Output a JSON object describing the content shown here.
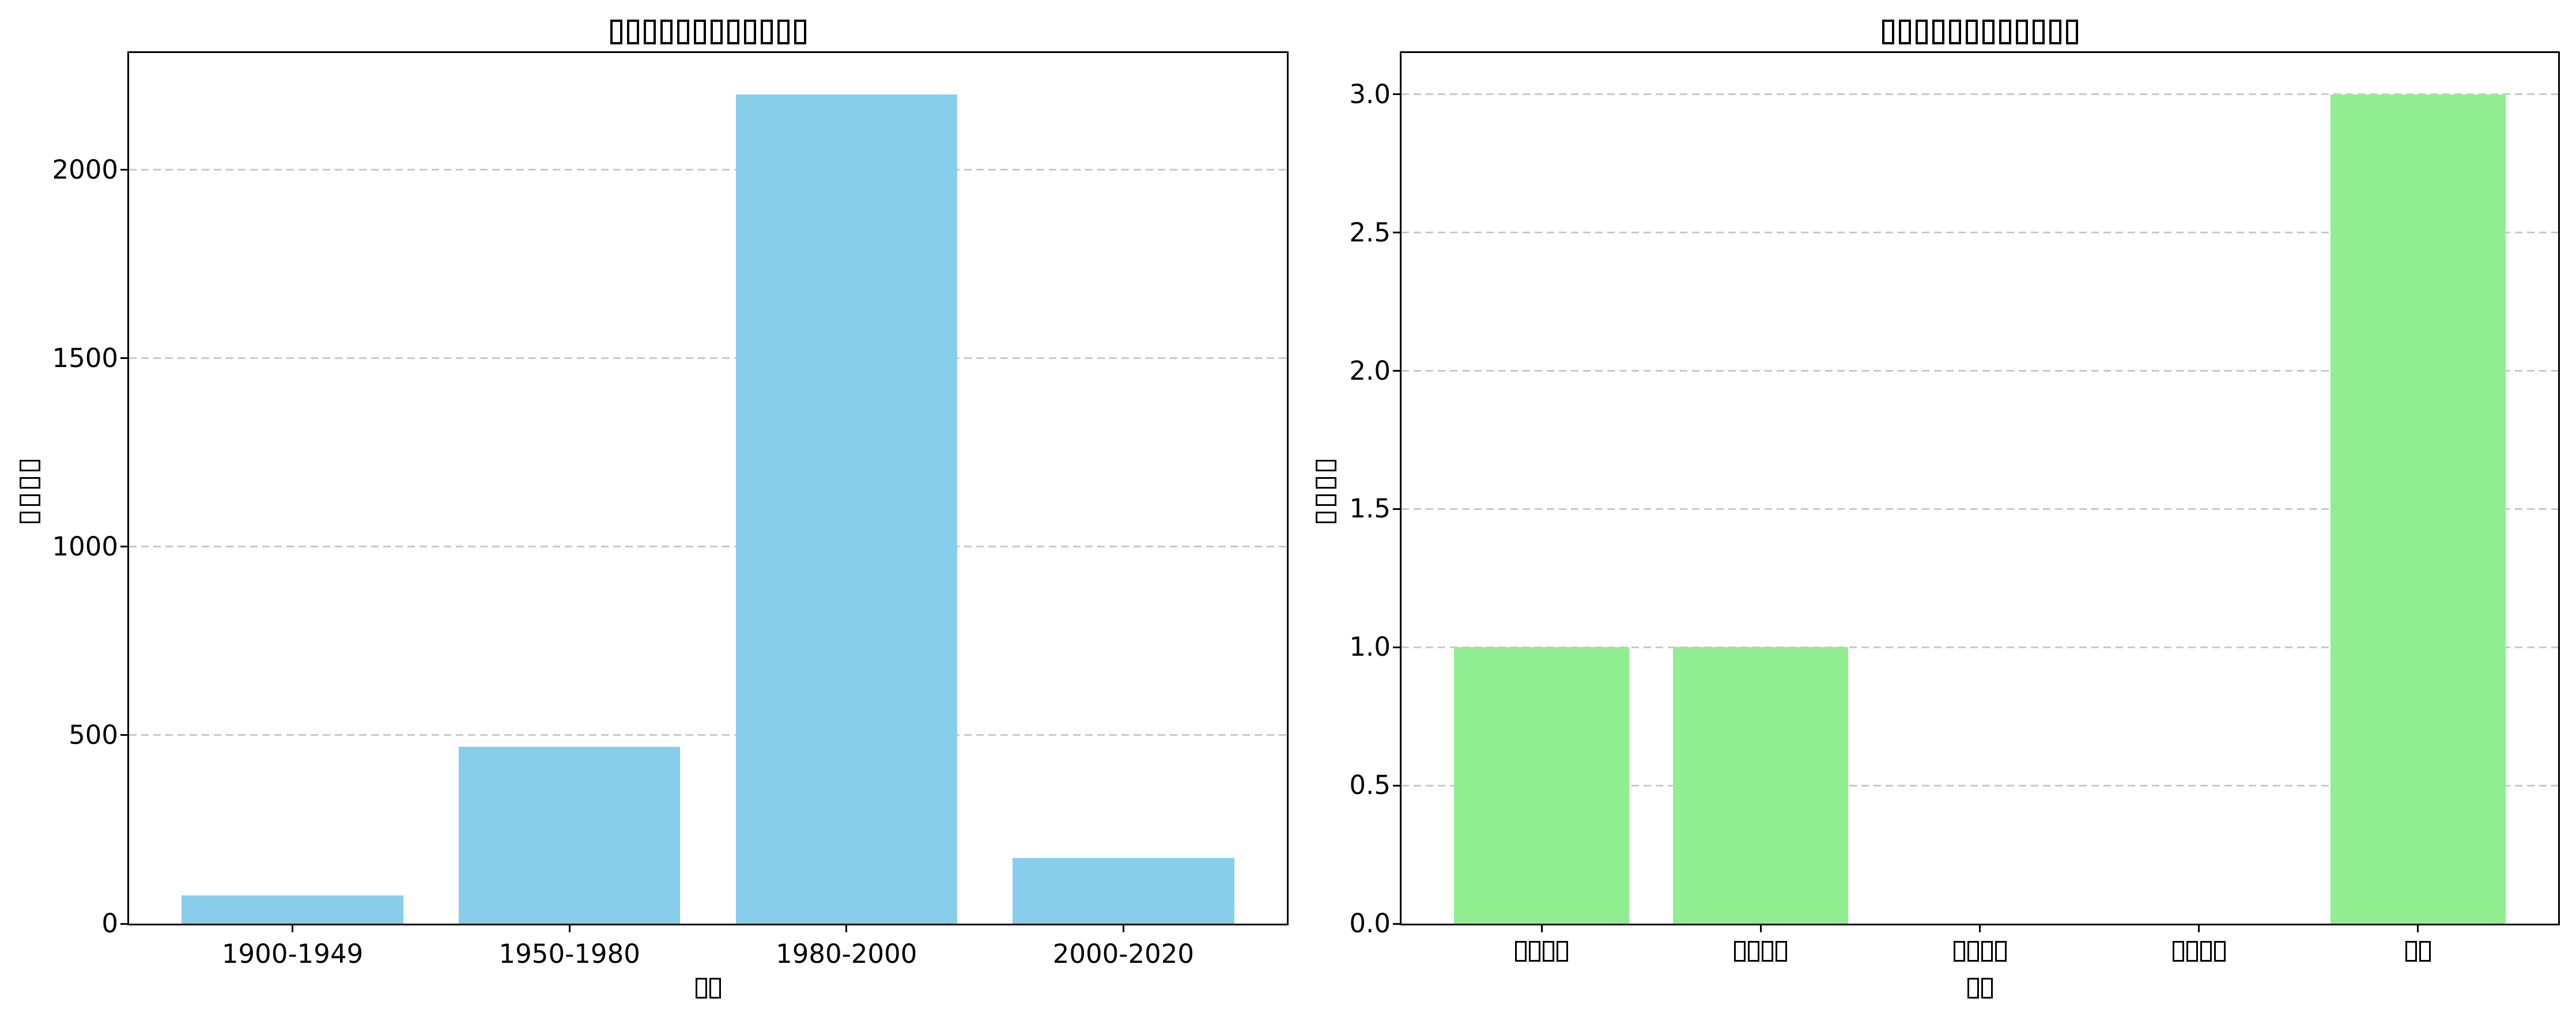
{
  "figure": {
    "background": "#ffffff",
    "spine_color": "#000000",
    "grid_color": "#c9c9c9",
    "grid_style": "dashed"
  },
  "chart_data": [
    {
      "type": "bar",
      "title": "□□□□□□□□□□□□",
      "xlabel": "□□",
      "ylabel": "□□□□",
      "categories": [
        "1900-1949",
        "1950-1980",
        "1980-2000",
        "2000-2020"
      ],
      "categories_are_tofu": false,
      "values": [
        75,
        470,
        2200,
        175
      ],
      "bar_color": "#87CEEB",
      "ylim": [
        0,
        2310
      ],
      "yticks": {
        "values": [
          0,
          500,
          1000,
          1500,
          2000
        ],
        "labels": [
          "0",
          "500",
          "1000",
          "1500",
          "2000"
        ]
      },
      "grid": "y-dashed",
      "legend": null
    },
    {
      "type": "bar",
      "title": "□□□□□□□□□□□□",
      "xlabel": "□□",
      "ylabel": "□□□□",
      "categories": [
        "□□□□",
        "□□□□",
        "□□□□",
        "□□□□",
        "□□"
      ],
      "categories_are_tofu": true,
      "values": [
        1,
        1,
        0,
        0,
        3
      ],
      "bar_color": "#90EE90",
      "ylim": [
        0,
        3.15
      ],
      "yticks": {
        "values": [
          0.0,
          0.5,
          1.0,
          1.5,
          2.0,
          2.5,
          3.0
        ],
        "labels": [
          "0.0",
          "0.5",
          "1.0",
          "1.5",
          "2.0",
          "2.5",
          "3.0"
        ]
      },
      "grid": "y-dashed",
      "legend": null
    }
  ]
}
